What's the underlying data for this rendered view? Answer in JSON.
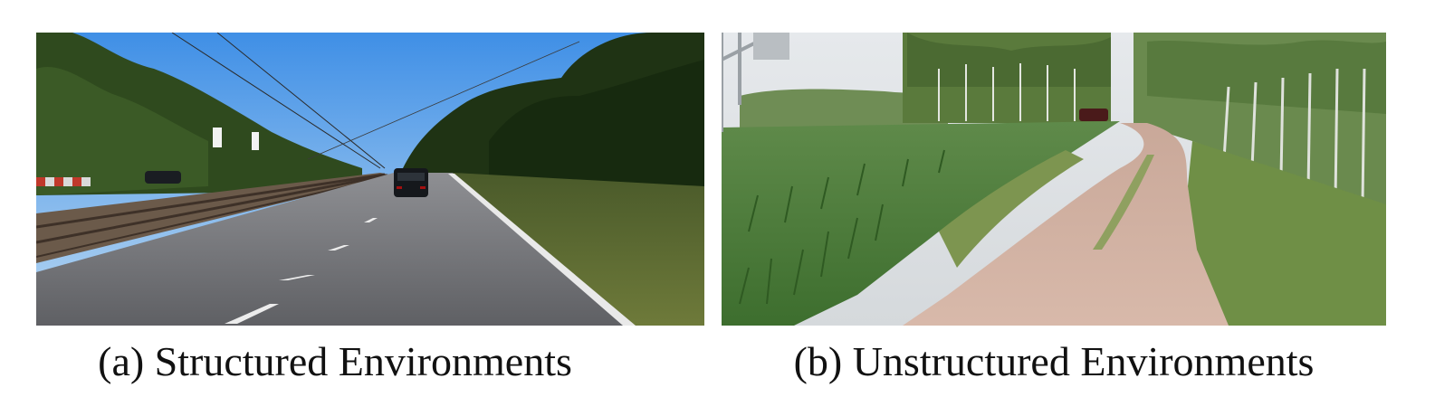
{
  "figure": {
    "panels": [
      {
        "caption": "(a) Structured Environments"
      },
      {
        "caption": "(b) Unstructured Environments"
      }
    ]
  }
}
